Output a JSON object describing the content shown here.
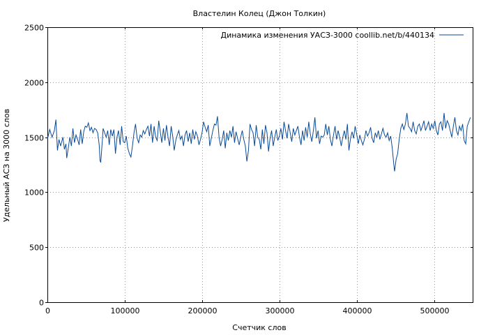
{
  "chart_data": {
    "type": "line",
    "title": "Властелин Колец (Джон Толкин)",
    "xlabel": "Счетчик слов",
    "ylabel": "Удельный АСЗ на 3000 слов",
    "xlim": [
      0,
      550000
    ],
    "ylim": [
      0,
      2500
    ],
    "xticks": [
      0,
      100000,
      200000,
      300000,
      400000,
      500000
    ],
    "xtick_labels": [
      "0",
      "100000",
      "200000",
      "300000",
      "400000",
      "500000"
    ],
    "yticks": [
      0,
      500,
      1000,
      1500,
      2000,
      2500
    ],
    "ytick_labels": [
      "0",
      "500",
      "1000",
      "1500",
      "2000",
      "2500"
    ],
    "grid": true,
    "legend_position": "top-right",
    "series": [
      {
        "name": "Динамика изменения УАСЗ-3000  coollib.net/b/440134",
        "color": "#0a4a96",
        "points": [
          [
            0,
            1480
          ],
          [
            3000,
            1570
          ],
          [
            6000,
            1500
          ],
          [
            9000,
            1560
          ],
          [
            11000,
            1660
          ],
          [
            13000,
            1380
          ],
          [
            15000,
            1480
          ],
          [
            17000,
            1420
          ],
          [
            20000,
            1500
          ],
          [
            22000,
            1390
          ],
          [
            24000,
            1440
          ],
          [
            25000,
            1310
          ],
          [
            27000,
            1400
          ],
          [
            29000,
            1500
          ],
          [
            31000,
            1420
          ],
          [
            33000,
            1580
          ],
          [
            35000,
            1450
          ],
          [
            37000,
            1520
          ],
          [
            39000,
            1480
          ],
          [
            41000,
            1430
          ],
          [
            43000,
            1570
          ],
          [
            45000,
            1440
          ],
          [
            47000,
            1550
          ],
          [
            49000,
            1600
          ],
          [
            51000,
            1590
          ],
          [
            53000,
            1630
          ],
          [
            55000,
            1560
          ],
          [
            57000,
            1590
          ],
          [
            59000,
            1540
          ],
          [
            61000,
            1580
          ],
          [
            63000,
            1570
          ],
          [
            65000,
            1540
          ],
          [
            67000,
            1430
          ],
          [
            68000,
            1290
          ],
          [
            69000,
            1270
          ],
          [
            71000,
            1460
          ],
          [
            72000,
            1580
          ],
          [
            74000,
            1540
          ],
          [
            76000,
            1500
          ],
          [
            78000,
            1560
          ],
          [
            80000,
            1430
          ],
          [
            82000,
            1570
          ],
          [
            84000,
            1510
          ],
          [
            86000,
            1570
          ],
          [
            88000,
            1350
          ],
          [
            90000,
            1500
          ],
          [
            92000,
            1560
          ],
          [
            94000,
            1430
          ],
          [
            96000,
            1600
          ],
          [
            98000,
            1460
          ],
          [
            100000,
            1450
          ],
          [
            102000,
            1510
          ],
          [
            104000,
            1400
          ],
          [
            106000,
            1350
          ],
          [
            108000,
            1320
          ],
          [
            110000,
            1420
          ],
          [
            112000,
            1540
          ],
          [
            114000,
            1620
          ],
          [
            116000,
            1490
          ],
          [
            118000,
            1450
          ],
          [
            120000,
            1520
          ],
          [
            122000,
            1500
          ],
          [
            124000,
            1560
          ],
          [
            126000,
            1530
          ],
          [
            128000,
            1570
          ],
          [
            130000,
            1600
          ],
          [
            132000,
            1510
          ],
          [
            134000,
            1620
          ],
          [
            136000,
            1450
          ],
          [
            138000,
            1600
          ],
          [
            140000,
            1500
          ],
          [
            142000,
            1470
          ],
          [
            144000,
            1650
          ],
          [
            146000,
            1550
          ],
          [
            148000,
            1450
          ],
          [
            150000,
            1580
          ],
          [
            152000,
            1470
          ],
          [
            154000,
            1610
          ],
          [
            156000,
            1500
          ],
          [
            158000,
            1420
          ],
          [
            160000,
            1600
          ],
          [
            162000,
            1510
          ],
          [
            164000,
            1380
          ],
          [
            166000,
            1470
          ],
          [
            168000,
            1520
          ],
          [
            170000,
            1560
          ],
          [
            172000,
            1480
          ],
          [
            174000,
            1510
          ],
          [
            176000,
            1420
          ],
          [
            178000,
            1520
          ],
          [
            180000,
            1560
          ],
          [
            182000,
            1460
          ],
          [
            184000,
            1540
          ],
          [
            186000,
            1440
          ],
          [
            188000,
            1570
          ],
          [
            190000,
            1480
          ],
          [
            192000,
            1550
          ],
          [
            194000,
            1510
          ],
          [
            196000,
            1430
          ],
          [
            198000,
            1480
          ],
          [
            200000,
            1540
          ],
          [
            202000,
            1640
          ],
          [
            204000,
            1590
          ],
          [
            206000,
            1550
          ],
          [
            208000,
            1610
          ],
          [
            210000,
            1420
          ],
          [
            212000,
            1490
          ],
          [
            214000,
            1560
          ],
          [
            216000,
            1620
          ],
          [
            218000,
            1610
          ],
          [
            220000,
            1690
          ],
          [
            222000,
            1500
          ],
          [
            224000,
            1420
          ],
          [
            226000,
            1480
          ],
          [
            228000,
            1560
          ],
          [
            230000,
            1400
          ],
          [
            232000,
            1540
          ],
          [
            234000,
            1470
          ],
          [
            236000,
            1560
          ],
          [
            238000,
            1500
          ],
          [
            240000,
            1600
          ],
          [
            242000,
            1450
          ],
          [
            244000,
            1550
          ],
          [
            246000,
            1490
          ],
          [
            248000,
            1430
          ],
          [
            250000,
            1500
          ],
          [
            252000,
            1560
          ],
          [
            254000,
            1480
          ],
          [
            256000,
            1420
          ],
          [
            258000,
            1280
          ],
          [
            260000,
            1380
          ],
          [
            262000,
            1620
          ],
          [
            264000,
            1570
          ],
          [
            266000,
            1540
          ],
          [
            268000,
            1420
          ],
          [
            270000,
            1610
          ],
          [
            272000,
            1500
          ],
          [
            274000,
            1480
          ],
          [
            276000,
            1390
          ],
          [
            278000,
            1570
          ],
          [
            280000,
            1440
          ],
          [
            282000,
            1610
          ],
          [
            284000,
            1540
          ],
          [
            286000,
            1370
          ],
          [
            288000,
            1490
          ],
          [
            290000,
            1560
          ],
          [
            292000,
            1420
          ],
          [
            294000,
            1500
          ],
          [
            296000,
            1570
          ],
          [
            298000,
            1470
          ],
          [
            300000,
            1510
          ],
          [
            302000,
            1580
          ],
          [
            304000,
            1480
          ],
          [
            306000,
            1640
          ],
          [
            308000,
            1560
          ],
          [
            310000,
            1490
          ],
          [
            312000,
            1620
          ],
          [
            314000,
            1540
          ],
          [
            316000,
            1460
          ],
          [
            318000,
            1580
          ],
          [
            320000,
            1520
          ],
          [
            322000,
            1560
          ],
          [
            324000,
            1600
          ],
          [
            326000,
            1500
          ],
          [
            328000,
            1430
          ],
          [
            330000,
            1560
          ],
          [
            332000,
            1470
          ],
          [
            334000,
            1590
          ],
          [
            336000,
            1500
          ],
          [
            338000,
            1640
          ],
          [
            340000,
            1530
          ],
          [
            342000,
            1460
          ],
          [
            344000,
            1560
          ],
          [
            346000,
            1680
          ],
          [
            348000,
            1490
          ],
          [
            350000,
            1560
          ],
          [
            352000,
            1440
          ],
          [
            354000,
            1510
          ],
          [
            356000,
            1500
          ],
          [
            358000,
            1520
          ],
          [
            360000,
            1620
          ],
          [
            362000,
            1520
          ],
          [
            364000,
            1600
          ],
          [
            366000,
            1480
          ],
          [
            368000,
            1420
          ],
          [
            370000,
            1520
          ],
          [
            372000,
            1600
          ],
          [
            374000,
            1480
          ],
          [
            376000,
            1560
          ],
          [
            378000,
            1500
          ],
          [
            380000,
            1420
          ],
          [
            382000,
            1500
          ],
          [
            384000,
            1560
          ],
          [
            386000,
            1480
          ],
          [
            388000,
            1620
          ],
          [
            390000,
            1380
          ],
          [
            392000,
            1490
          ],
          [
            394000,
            1550
          ],
          [
            396000,
            1490
          ],
          [
            398000,
            1600
          ],
          [
            400000,
            1530
          ],
          [
            402000,
            1440
          ],
          [
            404000,
            1520
          ],
          [
            406000,
            1470
          ],
          [
            408000,
            1430
          ],
          [
            410000,
            1480
          ],
          [
            412000,
            1560
          ],
          [
            414000,
            1510
          ],
          [
            416000,
            1540
          ],
          [
            418000,
            1590
          ],
          [
            420000,
            1490
          ],
          [
            422000,
            1450
          ],
          [
            424000,
            1540
          ],
          [
            426000,
            1500
          ],
          [
            428000,
            1560
          ],
          [
            430000,
            1480
          ],
          [
            432000,
            1530
          ],
          [
            434000,
            1580
          ],
          [
            436000,
            1520
          ],
          [
            438000,
            1500
          ],
          [
            440000,
            1540
          ],
          [
            442000,
            1470
          ],
          [
            444000,
            1510
          ],
          [
            446000,
            1400
          ],
          [
            448000,
            1250
          ],
          [
            449000,
            1190
          ],
          [
            451000,
            1300
          ],
          [
            453000,
            1350
          ],
          [
            455000,
            1480
          ],
          [
            457000,
            1580
          ],
          [
            459000,
            1620
          ],
          [
            461000,
            1570
          ],
          [
            463000,
            1620
          ],
          [
            465000,
            1720
          ],
          [
            467000,
            1600
          ],
          [
            469000,
            1580
          ],
          [
            471000,
            1550
          ],
          [
            473000,
            1640
          ],
          [
            475000,
            1560
          ],
          [
            477000,
            1530
          ],
          [
            479000,
            1600
          ],
          [
            481000,
            1620
          ],
          [
            483000,
            1560
          ],
          [
            485000,
            1600
          ],
          [
            487000,
            1650
          ],
          [
            489000,
            1560
          ],
          [
            491000,
            1600
          ],
          [
            493000,
            1640
          ],
          [
            495000,
            1560
          ],
          [
            497000,
            1620
          ],
          [
            499000,
            1580
          ],
          [
            501000,
            1650
          ],
          [
            503000,
            1560
          ],
          [
            505000,
            1520
          ],
          [
            507000,
            1620
          ],
          [
            509000,
            1640
          ],
          [
            511000,
            1560
          ],
          [
            513000,
            1720
          ],
          [
            515000,
            1580
          ],
          [
            517000,
            1650
          ],
          [
            519000,
            1620
          ],
          [
            521000,
            1560
          ],
          [
            523000,
            1500
          ],
          [
            525000,
            1600
          ],
          [
            527000,
            1680
          ],
          [
            529000,
            1560
          ],
          [
            531000,
            1520
          ],
          [
            533000,
            1600
          ],
          [
            535000,
            1560
          ],
          [
            537000,
            1620
          ],
          [
            539000,
            1470
          ],
          [
            541000,
            1440
          ],
          [
            543000,
            1600
          ],
          [
            545000,
            1640
          ],
          [
            547000,
            1680
          ]
        ]
      }
    ]
  }
}
